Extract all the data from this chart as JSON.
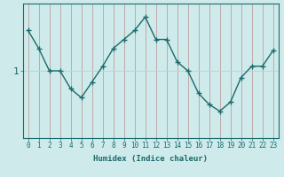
{
  "xlabel": "Humidex (Indice chaleur)",
  "ylabel": "",
  "background_color": "#ceeaea",
  "line_color": "#1a6b6b",
  "marker": "+",
  "x": [
    0,
    1,
    2,
    3,
    4,
    5,
    6,
    7,
    8,
    9,
    10,
    11,
    12,
    13,
    14,
    15,
    16,
    17,
    18,
    19,
    20,
    21,
    22,
    23
  ],
  "y": [
    0.88,
    0.8,
    0.7,
    0.7,
    0.62,
    0.58,
    0.65,
    0.72,
    0.8,
    0.84,
    0.88,
    0.94,
    0.84,
    0.84,
    0.74,
    0.7,
    0.6,
    0.55,
    0.52,
    0.56,
    0.67,
    0.72,
    0.72,
    0.79
  ],
  "ytick_label": "1",
  "ytick_value": 0.7,
  "ylim": [
    0.4,
    1.0
  ],
  "xlim": [
    -0.5,
    23.5
  ],
  "hgrid_color": "#b8d8d8",
  "vgrid_color": "#b8d8d8"
}
